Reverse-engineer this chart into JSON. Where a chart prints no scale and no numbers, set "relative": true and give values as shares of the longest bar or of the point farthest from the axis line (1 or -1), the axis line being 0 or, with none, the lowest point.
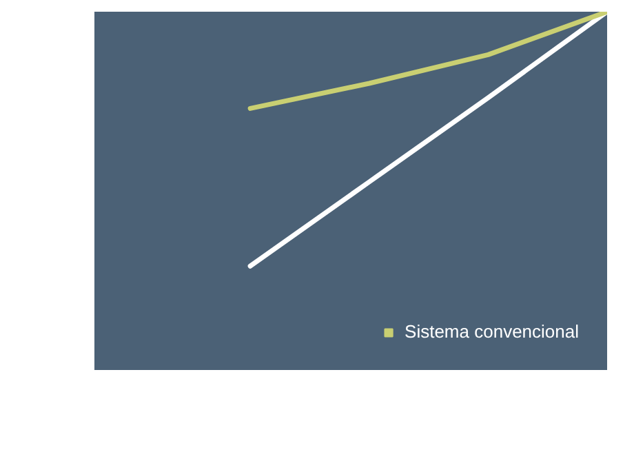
{
  "chart_data": {
    "type": "line",
    "relative": true,
    "categories": [
      null,
      null,
      null,
      null
    ],
    "series": [
      {
        "color": "#ffffff",
        "values": [
          0.29,
          0.525,
          0.76,
          1
        ]
      },
      {
        "name": "Sistema convencional",
        "color": "#c9cf72",
        "values": [
          0.73,
          0.8,
          0.88,
          1
        ]
      }
    ],
    "grid": false,
    "legend": "bottom right",
    "marker": "none",
    "line_style": "solid"
  }
}
